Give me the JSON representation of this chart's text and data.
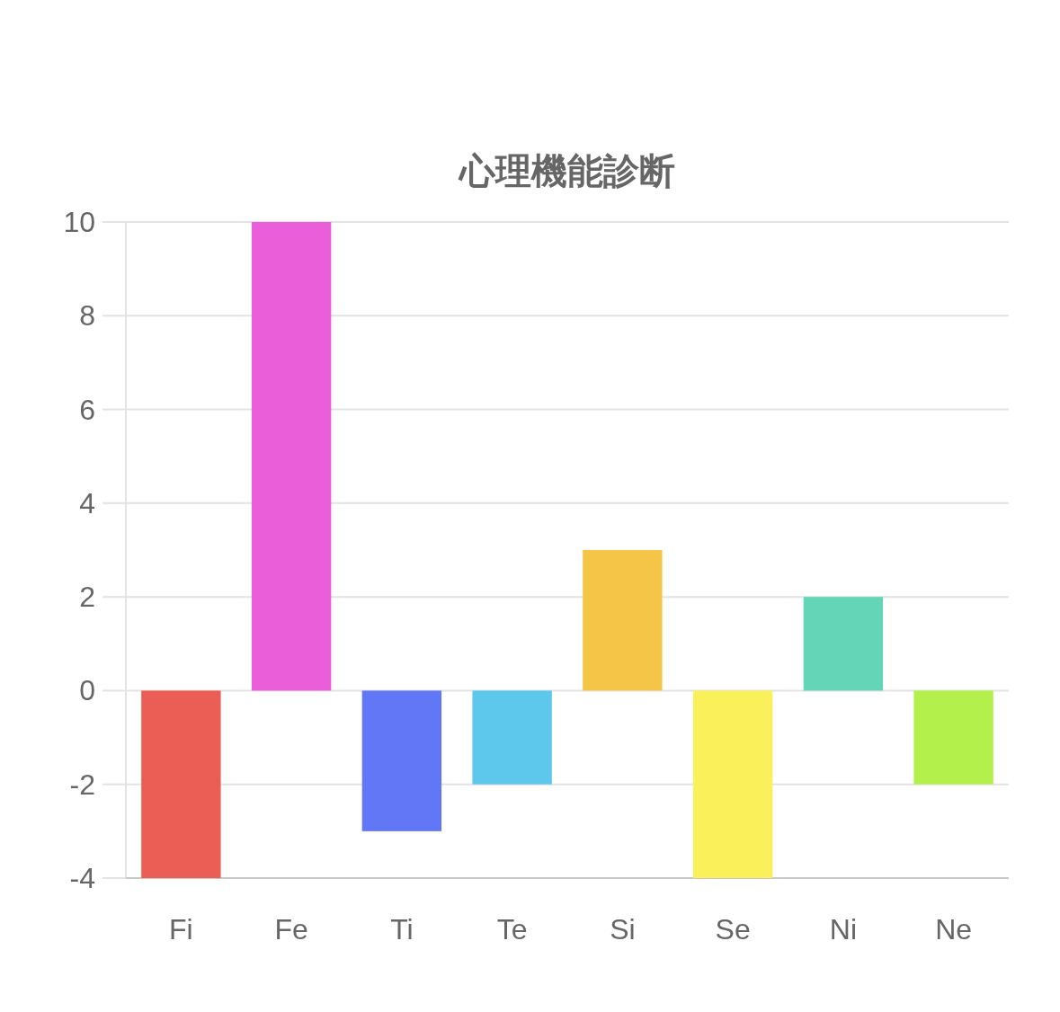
{
  "chart_data": {
    "type": "bar",
    "title": "心理機能診断",
    "categories": [
      "Fi",
      "Fe",
      "Ti",
      "Te",
      "Si",
      "Se",
      "Ni",
      "Ne"
    ],
    "values": [
      -4,
      10,
      -3,
      -2,
      3,
      -4,
      2,
      -2
    ],
    "colors": [
      "#eb5e55",
      "#eb5ed9",
      "#6277f5",
      "#5dc7ec",
      "#f5c547",
      "#faf05a",
      "#64d6b7",
      "#b3f04b"
    ],
    "ylim": [
      -4,
      10
    ],
    "yticks": [
      -4,
      -2,
      0,
      2,
      4,
      6,
      8,
      10
    ],
    "grid": "y"
  }
}
